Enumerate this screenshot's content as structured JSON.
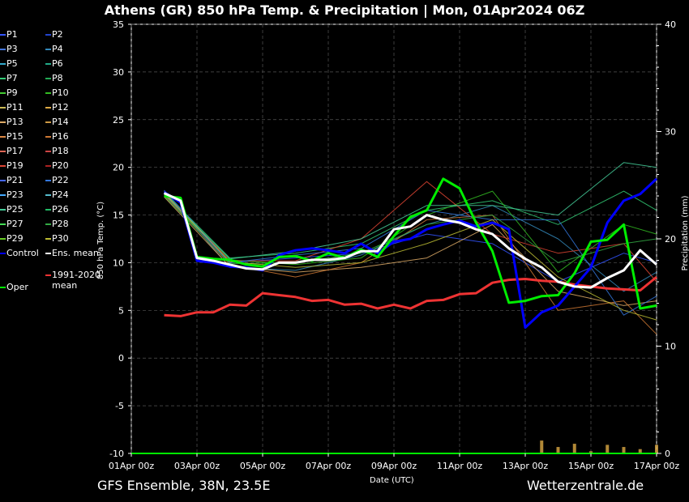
{
  "title": "Athens  (GR)  850 hPa Temp. & Precipitation | Mon, 01Apr2024 06Z",
  "footer": {
    "left": "GFS Ensemble, 38N, 23.5E",
    "right": "Wetterzentrale.de"
  },
  "colors": {
    "background": "#000000",
    "ens_mean": "#ffffff",
    "control": "#0000ff",
    "oper": "#00ee00",
    "climate": "#ee3333"
  },
  "legend": [
    {
      "label": "P1",
      "color": "#3355ff"
    },
    {
      "label": "P2",
      "color": "#2244cc"
    },
    {
      "label": "P3",
      "color": "#4477dd"
    },
    {
      "label": "P4",
      "color": "#3388bb"
    },
    {
      "label": "P5",
      "color": "#33aacc"
    },
    {
      "label": "P6",
      "color": "#22aa88"
    },
    {
      "label": "P7",
      "color": "#33cc77"
    },
    {
      "label": "P8",
      "color": "#22aa55"
    },
    {
      "label": "P9",
      "color": "#44cc33"
    },
    {
      "label": "P10",
      "color": "#33bb22"
    },
    {
      "label": "P11",
      "color": "#ccbb55"
    },
    {
      "label": "P12",
      "color": "#ddaa44"
    },
    {
      "label": "P13",
      "color": "#ddaa66"
    },
    {
      "label": "P14",
      "color": "#cc9944"
    },
    {
      "label": "P15",
      "color": "#dd8844"
    },
    {
      "label": "P16",
      "color": "#cc7733"
    },
    {
      "label": "P17",
      "color": "#dd6655"
    },
    {
      "label": "P18",
      "color": "#cc4444"
    },
    {
      "label": "P19",
      "color": "#dd4433"
    },
    {
      "label": "P20",
      "color": "#aa2222"
    },
    {
      "label": "P21",
      "color": "#4466ff"
    },
    {
      "label": "P22",
      "color": "#3377dd"
    },
    {
      "label": "P23",
      "color": "#44aaff"
    },
    {
      "label": "P24",
      "color": "#55bbcc"
    },
    {
      "label": "P25",
      "color": "#44cc99"
    },
    {
      "label": "P26",
      "color": "#22bb66"
    },
    {
      "label": "P27",
      "color": "#44dd55"
    },
    {
      "label": "P28",
      "color": "#33aa44"
    },
    {
      "label": "P29",
      "color": "#66cc22"
    },
    {
      "label": "P30",
      "color": "#bbbb33"
    },
    {
      "label": "Control",
      "color": "#0000ff"
    },
    {
      "label": "Ens. mean",
      "color": "#ffffff"
    },
    {
      "label": "1991-2020 mean",
      "color": "#ee3333"
    },
    {
      "label": "Oper",
      "color": "#00ee00"
    }
  ],
  "chart_data": {
    "type": "line",
    "ylabel": "850 hPa Temp. (°C)",
    "y2label": "Precipitation (mm)",
    "xlabel": "Date (UTC)",
    "ylim": [
      -10,
      35
    ],
    "y2lim": [
      0,
      40
    ],
    "grid": true,
    "yticks": [
      -10,
      -5,
      0,
      5,
      10,
      15,
      20,
      25,
      30,
      35
    ],
    "y2ticks": [
      0,
      10,
      20,
      30,
      40
    ],
    "xlim_days": [
      0,
      16
    ],
    "xticks": [
      {
        "day": 0,
        "label": "01Apr 00z"
      },
      {
        "day": 2,
        "label": "03Apr 00z"
      },
      {
        "day": 4,
        "label": "05Apr 00z"
      },
      {
        "day": 6,
        "label": "07Apr 00z"
      },
      {
        "day": 8,
        "label": "09Apr 00z"
      },
      {
        "day": 10,
        "label": "11Apr 00z"
      },
      {
        "day": 12,
        "label": "13Apr 00z"
      },
      {
        "day": 14,
        "label": "15Apr 00z"
      },
      {
        "day": 16,
        "label": "17Apr 00z"
      }
    ],
    "series": [
      {
        "name": "Ens. mean",
        "x": [
          1,
          1.5,
          2,
          2.5,
          3,
          3.5,
          4,
          4.5,
          5,
          5.5,
          6,
          6.5,
          7,
          7.5,
          8,
          8.5,
          9,
          9.5,
          10,
          10.5,
          11,
          11.5,
          12,
          12.5,
          13,
          13.5,
          14,
          14.5,
          15,
          15.5,
          16
        ],
        "values": [
          17.3,
          16.5,
          10.5,
          10.2,
          9.8,
          9.4,
          9.3,
          10.0,
          10.0,
          10.3,
          10.3,
          10.5,
          11.2,
          11.2,
          13.5,
          13.8,
          15.0,
          14.5,
          14.2,
          13.5,
          13.0,
          11.5,
          10.4,
          9.5,
          8.0,
          7.5,
          7.4,
          8.4,
          9.2,
          11.3,
          9.8
        ]
      },
      {
        "name": "Control",
        "x": [
          1,
          1.5,
          2,
          2.5,
          3,
          3.5,
          4,
          4.5,
          5,
          5.5,
          6,
          6.5,
          7,
          7.5,
          8,
          8.5,
          9,
          9.5,
          10,
          10.5,
          11,
          11.5,
          12,
          12.5,
          13,
          13.5,
          14,
          14.5,
          15,
          15.5,
          16
        ],
        "values": [
          17.4,
          16.3,
          10.2,
          10.0,
          9.6,
          9.5,
          9.2,
          10.8,
          11.3,
          11.5,
          11.3,
          11.0,
          12.0,
          11.0,
          12.2,
          12.5,
          13.5,
          14.0,
          14.4,
          13.8,
          14.2,
          13.5,
          3.2,
          4.8,
          5.5,
          7.5,
          9.5,
          14.2,
          16.5,
          17.2,
          18.8
        ]
      },
      {
        "name": "Oper",
        "x": [
          1,
          1.5,
          2,
          2.5,
          3,
          3.5,
          4,
          4.5,
          5,
          5.5,
          6,
          6.5,
          7,
          7.5,
          8,
          8.5,
          9,
          9.5,
          10,
          10.5,
          11,
          11.5,
          12,
          12.5,
          13,
          13.5,
          14,
          14.5,
          15,
          15.5,
          16
        ],
        "values": [
          17.0,
          16.8,
          10.6,
          10.4,
          10.3,
          9.8,
          9.6,
          10.6,
          10.7,
          10.2,
          11.0,
          10.5,
          11.4,
          10.6,
          12.8,
          14.8,
          15.5,
          18.8,
          17.8,
          14.2,
          11.2,
          5.8,
          6.0,
          6.5,
          6.6,
          8.9,
          12.2,
          12.4,
          14.0,
          5.2,
          5.5
        ]
      },
      {
        "name": "1991-2020 mean",
        "x": [
          1,
          1.5,
          2,
          2.5,
          3,
          3.5,
          4,
          4.5,
          5,
          5.5,
          6,
          6.5,
          7,
          7.5,
          8,
          8.5,
          9,
          9.5,
          10,
          10.5,
          11,
          11.5,
          12,
          12.5,
          13,
          13.5,
          14,
          14.5,
          15,
          15.5,
          16
        ],
        "values": [
          4.5,
          4.4,
          4.8,
          4.8,
          5.6,
          5.5,
          6.8,
          6.6,
          6.4,
          6.0,
          6.1,
          5.6,
          5.7,
          5.2,
          5.6,
          5.2,
          6.0,
          6.1,
          6.7,
          6.8,
          7.9,
          8.2,
          8.3,
          8.1,
          8.0,
          7.7,
          7.5,
          7.3,
          7.2,
          7.1,
          8.5
        ]
      },
      {
        "name": "P1",
        "x": [
          1,
          3,
          5,
          7,
          9,
          11,
          13,
          15,
          16
        ],
        "values": [
          17.2,
          10.0,
          10.5,
          11.0,
          13.0,
          12.0,
          8.0,
          11.0,
          10.0
        ]
      },
      {
        "name": "P4",
        "x": [
          1,
          3,
          5,
          7,
          9,
          11,
          13,
          15,
          16
        ],
        "values": [
          17.5,
          9.5,
          9.2,
          10.8,
          14.0,
          16.0,
          12.5,
          7.0,
          9.0
        ]
      },
      {
        "name": "P7",
        "x": [
          1,
          3,
          5,
          7,
          9,
          11,
          13,
          15,
          16
        ],
        "values": [
          17.4,
          10.5,
          11.0,
          12.0,
          15.5,
          16.5,
          14.0,
          17.5,
          15.5
        ]
      },
      {
        "name": "P10",
        "x": [
          1,
          3,
          5,
          7,
          9,
          11,
          13,
          15,
          16
        ],
        "values": [
          17.0,
          10.3,
          9.8,
          10.5,
          15.0,
          17.5,
          9.0,
          14.0,
          13.0
        ]
      },
      {
        "name": "P13",
        "x": [
          1,
          3,
          5,
          7,
          9,
          11,
          13,
          15,
          16
        ],
        "values": [
          16.9,
          9.6,
          9.0,
          9.5,
          10.5,
          14.0,
          7.0,
          5.5,
          6.0
        ]
      },
      {
        "name": "P16",
        "x": [
          1,
          3,
          5,
          7,
          9,
          11,
          13,
          15,
          16
        ],
        "values": [
          17.1,
          9.8,
          8.5,
          10.0,
          14.5,
          15.0,
          5.0,
          6.0,
          2.5
        ]
      },
      {
        "name": "P19",
        "x": [
          1,
          3,
          5,
          7,
          9,
          11,
          13,
          15,
          16
        ],
        "values": [
          17.3,
          10.2,
          10.2,
          12.5,
          18.5,
          13.0,
          11.0,
          12.0,
          8.0
        ]
      },
      {
        "name": "P22",
        "x": [
          1,
          3,
          5,
          7,
          9,
          11,
          13,
          15,
          16
        ],
        "values": [
          17.6,
          10.0,
          10.8,
          11.5,
          15.5,
          14.5,
          14.5,
          4.5,
          6.5
        ]
      },
      {
        "name": "P25",
        "x": [
          1,
          3,
          5,
          7,
          9,
          11,
          13,
          15,
          16
        ],
        "values": [
          17.2,
          10.4,
          11.2,
          12.5,
          16.0,
          16.0,
          15.0,
          20.5,
          20.0
        ]
      },
      {
        "name": "P28",
        "x": [
          1,
          3,
          5,
          7,
          9,
          11,
          13,
          15,
          16
        ],
        "values": [
          17.0,
          9.9,
          10.0,
          11.0,
          14.0,
          15.0,
          10.0,
          12.0,
          12.5
        ]
      },
      {
        "name": "P30",
        "x": [
          1,
          3,
          5,
          7,
          9,
          11,
          13,
          15,
          16
        ],
        "values": [
          17.3,
          10.1,
          9.5,
          10.0,
          12.0,
          14.5,
          8.5,
          5.0,
          4.0
        ]
      }
    ],
    "precip_bars": {
      "x": [
        12.5,
        13,
        13.5,
        14,
        14.5,
        15,
        15.5,
        16
      ],
      "values": [
        1.2,
        0.6,
        0.9,
        0.2,
        0.8,
        0.6,
        0.4,
        0.8
      ]
    }
  }
}
